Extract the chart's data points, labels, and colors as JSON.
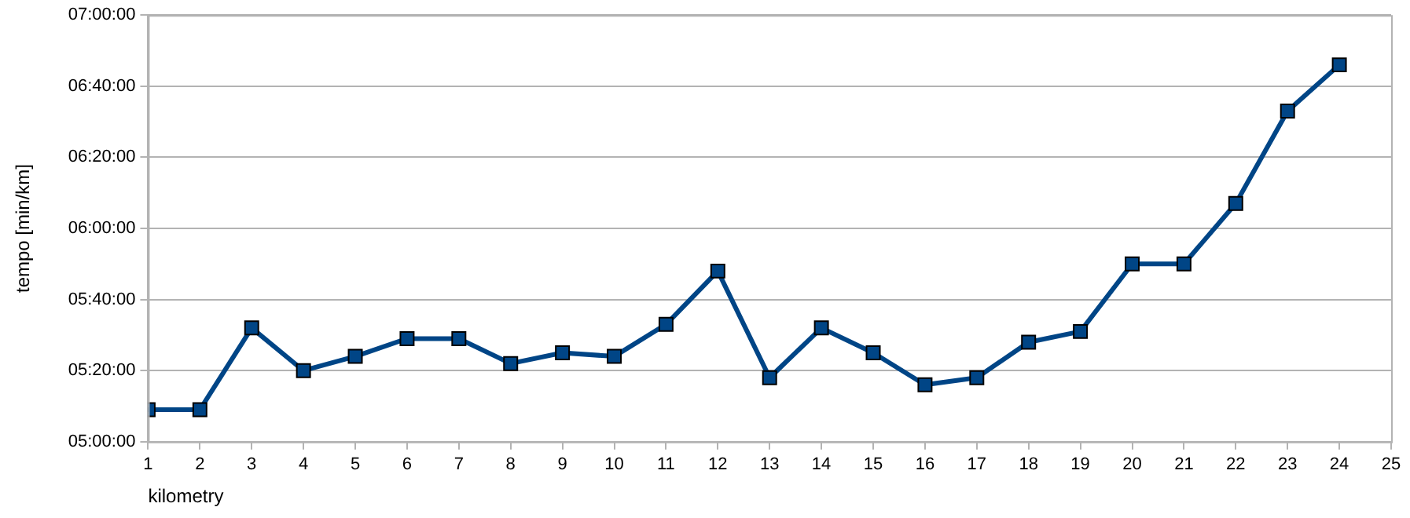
{
  "chart_data": {
    "type": "line",
    "xlabel": "kilometry",
    "ylabel": "tempo [min/km]",
    "x": [
      1,
      2,
      3,
      4,
      5,
      6,
      7,
      8,
      9,
      10,
      11,
      12,
      13,
      14,
      15,
      16,
      17,
      18,
      19,
      20,
      21,
      22,
      23,
      24
    ],
    "series": [
      {
        "color": "#004586",
        "values": [
          309,
          309,
          332,
          320,
          324,
          329,
          329,
          322,
          325,
          324,
          333,
          348,
          318,
          332,
          325,
          316,
          318,
          328,
          331,
          350,
          350,
          367,
          393,
          406
        ]
      }
    ],
    "xlim": [
      1,
      25
    ],
    "xticks": [
      1,
      2,
      3,
      4,
      5,
      6,
      7,
      8,
      9,
      10,
      11,
      12,
      13,
      14,
      15,
      16,
      17,
      18,
      19,
      20,
      21,
      22,
      23,
      24,
      25
    ],
    "ylim": [
      300,
      420
    ],
    "yticks": [
      {
        "value": 300,
        "label": "05:00:00"
      },
      {
        "value": 320,
        "label": "05:20:00"
      },
      {
        "value": 340,
        "label": "05:40:00"
      },
      {
        "value": 360,
        "label": "06:00:00"
      },
      {
        "value": 380,
        "label": "06:20:00"
      },
      {
        "value": 400,
        "label": "06:40:00"
      },
      {
        "value": 420,
        "label": "07:00:00"
      }
    ],
    "grid": "y",
    "legend": false,
    "marker": "square",
    "line_style": "solid"
  }
}
